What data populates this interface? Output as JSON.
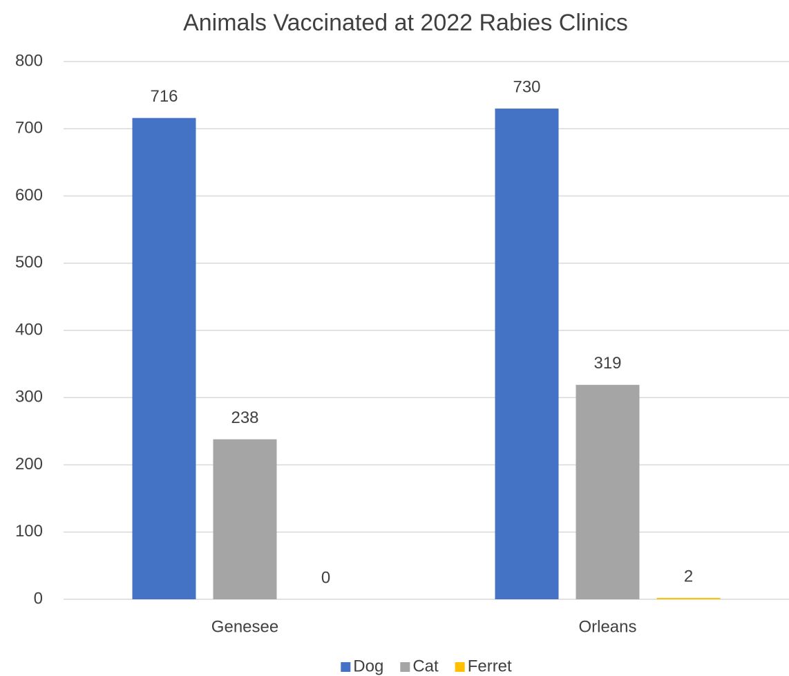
{
  "chart_data": {
    "type": "bar",
    "title": "Animals Vaccinated at 2022 Rabies Clinics",
    "categories": [
      "Genesee",
      "Orleans"
    ],
    "series": [
      {
        "name": "Dog",
        "color": "#4472c4",
        "values": [
          716,
          730
        ]
      },
      {
        "name": "Cat",
        "color": "#a5a5a5",
        "values": [
          238,
          319
        ]
      },
      {
        "name": "Ferret",
        "color": "#ffc000",
        "values": [
          0,
          2
        ]
      }
    ],
    "ylim": [
      0,
      800
    ],
    "yticks": [
      0,
      100,
      200,
      300,
      400,
      500,
      600,
      700,
      800
    ],
    "grid": true,
    "legend": "bottom"
  }
}
